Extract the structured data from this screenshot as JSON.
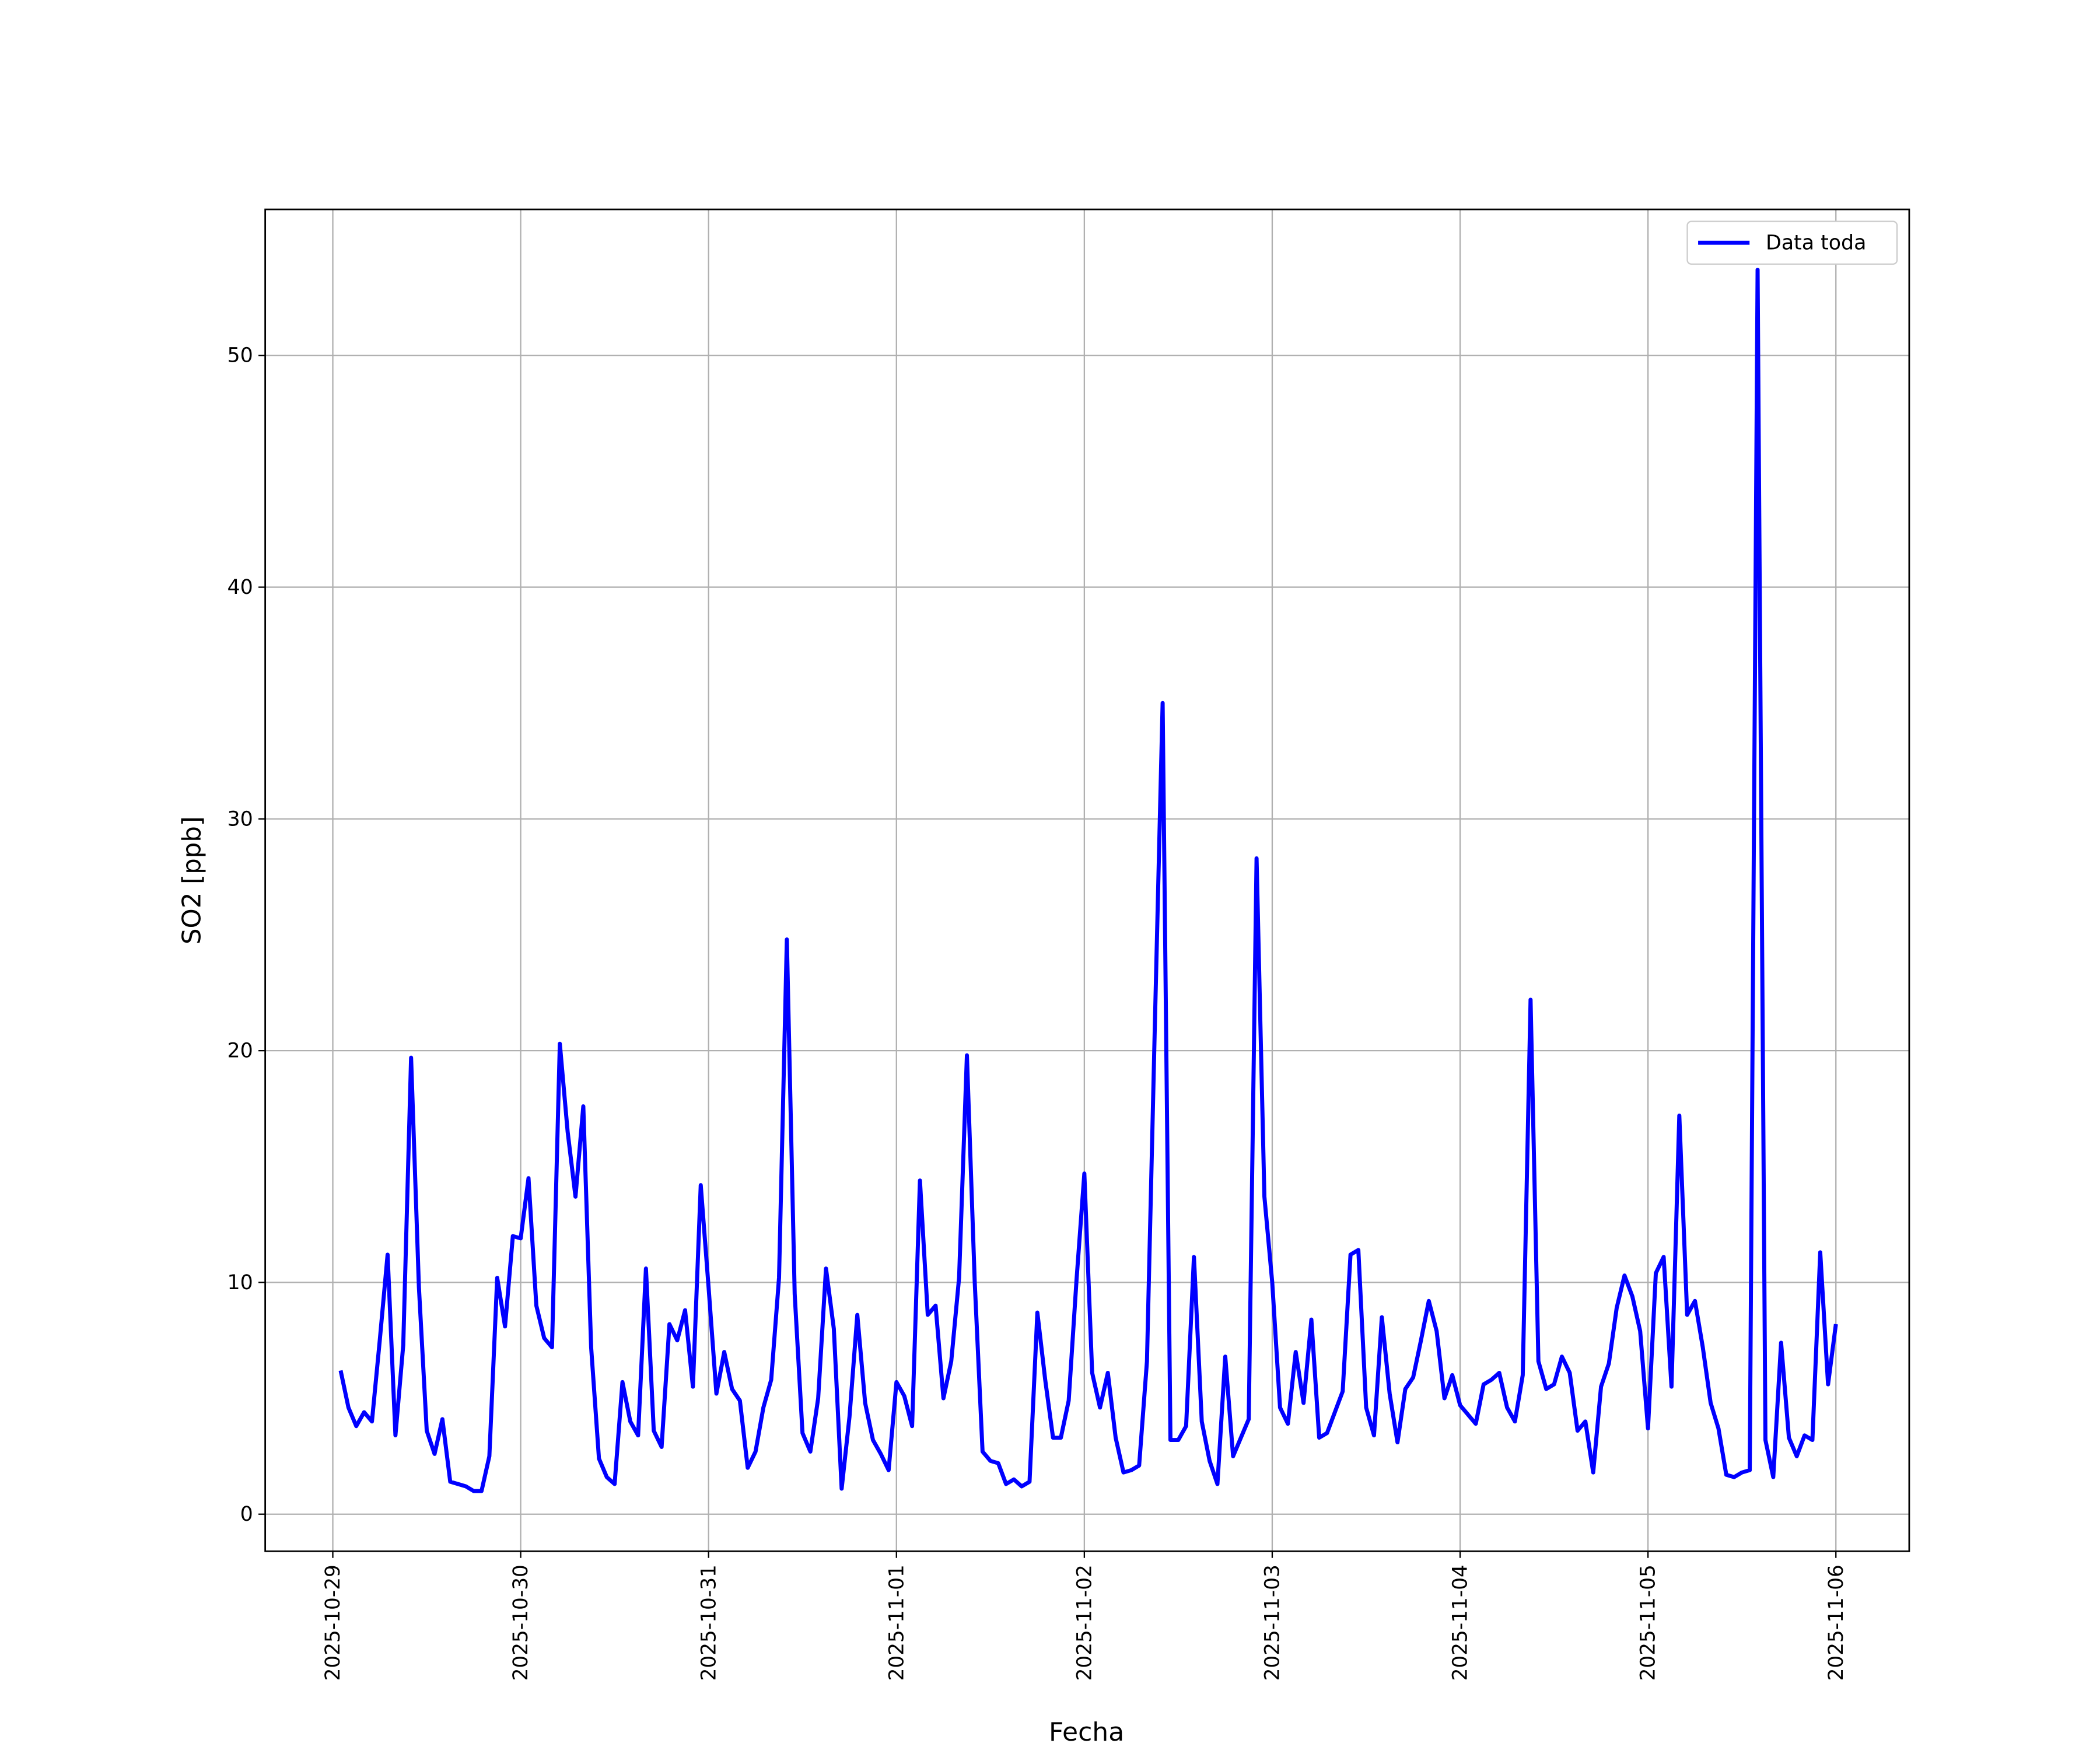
{
  "chart_data": {
    "type": "line",
    "xlabel": "Fecha",
    "ylabel": "SO2 [ppb]",
    "x": [
      "2025-10-29 01:00",
      "2025-10-29 02:00",
      "2025-10-29 03:00",
      "2025-10-29 04:00",
      "2025-10-29 05:00",
      "2025-10-29 06:00",
      "2025-10-29 07:00",
      "2025-10-29 08:00",
      "2025-10-29 09:00",
      "2025-10-29 10:00",
      "2025-10-29 11:00",
      "2025-10-29 12:00",
      "2025-10-29 13:00",
      "2025-10-29 14:00",
      "2025-10-29 15:00",
      "2025-10-29 16:00",
      "2025-10-29 17:00",
      "2025-10-29 18:00",
      "2025-10-29 19:00",
      "2025-10-29 20:00",
      "2025-10-29 21:00",
      "2025-10-29 22:00",
      "2025-10-29 23:00",
      "2025-10-30 00:00",
      "2025-10-30 01:00",
      "2025-10-30 02:00",
      "2025-10-30 03:00",
      "2025-10-30 04:00",
      "2025-10-30 05:00",
      "2025-10-30 06:00",
      "2025-10-30 07:00",
      "2025-10-30 08:00",
      "2025-10-30 09:00",
      "2025-10-30 10:00",
      "2025-10-30 11:00",
      "2025-10-30 12:00",
      "2025-10-30 13:00",
      "2025-10-30 14:00",
      "2025-10-30 15:00",
      "2025-10-30 16:00",
      "2025-10-30 17:00",
      "2025-10-30 18:00",
      "2025-10-30 19:00",
      "2025-10-30 20:00",
      "2025-10-30 21:00",
      "2025-10-30 22:00",
      "2025-10-30 23:00",
      "2025-10-31 00:00",
      "2025-10-31 01:00",
      "2025-10-31 02:00",
      "2025-10-31 03:00",
      "2025-10-31 04:00",
      "2025-10-31 05:00",
      "2025-10-31 06:00",
      "2025-10-31 07:00",
      "2025-10-31 08:00",
      "2025-10-31 09:00",
      "2025-10-31 10:00",
      "2025-10-31 11:00",
      "2025-10-31 12:00",
      "2025-10-31 13:00",
      "2025-10-31 14:00",
      "2025-10-31 15:00",
      "2025-10-31 16:00",
      "2025-10-31 17:00",
      "2025-10-31 18:00",
      "2025-10-31 19:00",
      "2025-10-31 20:00",
      "2025-10-31 21:00",
      "2025-10-31 22:00",
      "2025-10-31 23:00",
      "2025-11-01 00:00",
      "2025-11-01 01:00",
      "2025-11-01 02:00",
      "2025-11-01 03:00",
      "2025-11-01 04:00",
      "2025-11-01 05:00",
      "2025-11-01 06:00",
      "2025-11-01 07:00",
      "2025-11-01 08:00",
      "2025-11-01 09:00",
      "2025-11-01 10:00",
      "2025-11-01 11:00",
      "2025-11-01 12:00",
      "2025-11-01 13:00",
      "2025-11-01 14:00",
      "2025-11-01 15:00",
      "2025-11-01 16:00",
      "2025-11-01 17:00",
      "2025-11-01 18:00",
      "2025-11-01 19:00",
      "2025-11-01 20:00",
      "2025-11-01 21:00",
      "2025-11-01 22:00",
      "2025-11-01 23:00",
      "2025-11-02 00:00",
      "2025-11-02 01:00",
      "2025-11-02 02:00",
      "2025-11-02 03:00",
      "2025-11-02 04:00",
      "2025-11-02 05:00",
      "2025-11-02 06:00",
      "2025-11-02 07:00",
      "2025-11-02 08:00",
      "2025-11-02 09:00",
      "2025-11-02 10:00",
      "2025-11-02 11:00",
      "2025-11-02 12:00",
      "2025-11-02 13:00",
      "2025-11-02 14:00",
      "2025-11-02 15:00",
      "2025-11-02 16:00",
      "2025-11-02 17:00",
      "2025-11-02 18:00",
      "2025-11-02 19:00",
      "2025-11-02 20:00",
      "2025-11-02 21:00",
      "2025-11-02 22:00",
      "2025-11-02 23:00",
      "2025-11-03 00:00",
      "2025-11-03 01:00",
      "2025-11-03 02:00",
      "2025-11-03 03:00",
      "2025-11-03 04:00",
      "2025-11-03 05:00",
      "2025-11-03 06:00",
      "2025-11-03 07:00",
      "2025-11-03 08:00",
      "2025-11-03 09:00",
      "2025-11-03 10:00",
      "2025-11-03 11:00",
      "2025-11-03 12:00",
      "2025-11-03 13:00",
      "2025-11-03 14:00",
      "2025-11-03 15:00",
      "2025-11-03 16:00",
      "2025-11-03 17:00",
      "2025-11-03 18:00",
      "2025-11-03 19:00",
      "2025-11-03 20:00",
      "2025-11-03 21:00",
      "2025-11-03 22:00",
      "2025-11-03 23:00",
      "2025-11-04 00:00",
      "2025-11-04 01:00",
      "2025-11-04 02:00",
      "2025-11-04 03:00",
      "2025-11-04 04:00",
      "2025-11-04 05:00",
      "2025-11-04 06:00",
      "2025-11-04 07:00",
      "2025-11-04 08:00",
      "2025-11-04 09:00",
      "2025-11-04 10:00",
      "2025-11-04 11:00",
      "2025-11-04 12:00",
      "2025-11-04 13:00",
      "2025-11-04 14:00",
      "2025-11-04 15:00",
      "2025-11-04 16:00",
      "2025-11-04 17:00",
      "2025-11-04 18:00",
      "2025-11-04 19:00",
      "2025-11-04 20:00",
      "2025-11-04 21:00",
      "2025-11-04 22:00",
      "2025-11-04 23:00",
      "2025-11-05 00:00",
      "2025-11-05 01:00",
      "2025-11-05 02:00",
      "2025-11-05 03:00",
      "2025-11-05 04:00",
      "2025-11-05 05:00",
      "2025-11-05 06:00",
      "2025-11-05 07:00",
      "2025-11-05 08:00",
      "2025-11-05 09:00",
      "2025-11-05 10:00",
      "2025-11-05 11:00",
      "2025-11-05 12:00",
      "2025-11-05 13:00",
      "2025-11-05 14:00",
      "2025-11-05 15:00",
      "2025-11-05 16:00",
      "2025-11-05 17:00",
      "2025-11-05 18:00",
      "2025-11-05 19:00",
      "2025-11-05 20:00",
      "2025-11-05 21:00",
      "2025-11-05 22:00",
      "2025-11-05 23:00",
      "2025-11-06 00:00"
    ],
    "series": [
      {
        "name": "Data toda",
        "color": "#0000ff",
        "values": [
          6.2,
          4.6,
          3.8,
          4.4,
          4.0,
          7.5,
          11.2,
          3.4,
          7.3,
          19.7,
          9.8,
          3.6,
          2.6,
          4.1,
          1.4,
          1.3,
          1.2,
          1.0,
          1.0,
          2.5,
          10.2,
          8.1,
          12.0,
          11.9,
          14.5,
          9.0,
          7.6,
          7.2,
          20.3,
          16.5,
          13.7,
          17.6,
          7.2,
          2.4,
          1.6,
          1.3,
          5.7,
          4.0,
          3.4,
          10.6,
          3.6,
          2.9,
          8.2,
          7.5,
          8.8,
          5.5,
          14.2,
          9.8,
          5.2,
          7.0,
          5.4,
          4.9,
          2.0,
          2.7,
          4.6,
          5.8,
          10.2,
          24.8,
          9.5,
          3.5,
          2.7,
          5.0,
          10.6,
          8.0,
          1.1,
          4.2,
          8.6,
          4.8,
          3.2,
          2.6,
          1.9,
          5.7,
          5.1,
          3.8,
          14.4,
          8.6,
          9.0,
          5.0,
          6.6,
          10.2,
          19.8,
          10.0,
          2.7,
          2.3,
          2.2,
          1.3,
          1.5,
          1.2,
          1.4,
          8.7,
          5.8,
          3.3,
          3.3,
          4.9,
          10.1,
          14.7,
          6.1,
          4.6,
          6.1,
          3.3,
          1.8,
          1.9,
          2.1,
          6.6,
          21.0,
          35.0,
          3.2,
          3.2,
          3.8,
          11.1,
          4.0,
          2.3,
          1.3,
          6.8,
          2.5,
          3.3,
          4.1,
          28.3,
          13.7,
          10.0,
          4.6,
          3.9,
          7.0,
          4.8,
          8.4,
          3.3,
          3.5,
          4.4,
          5.3,
          11.2,
          11.4,
          4.6,
          3.4,
          8.5,
          5.2,
          3.1,
          5.4,
          5.9,
          7.5,
          9.2,
          7.9,
          5.0,
          6.0,
          4.7,
          4.3,
          3.9,
          5.6,
          5.8,
          6.1,
          4.6,
          4.0,
          6.0,
          22.2,
          6.6,
          5.4,
          5.6,
          6.8,
          6.1,
          3.6,
          4.0,
          1.8,
          5.5,
          6.5,
          8.9,
          10.3,
          9.4,
          7.9,
          3.7,
          10.4,
          11.1,
          5.5,
          17.2,
          8.6,
          9.2,
          7.2,
          4.8,
          3.7,
          1.7,
          1.6,
          1.8,
          1.9,
          53.7,
          3.2,
          1.6,
          7.4,
          3.3,
          2.5,
          3.4,
          3.2,
          11.3,
          5.6,
          8.2
        ]
      }
    ],
    "xlim": [
      "2025-10-28 15:22",
      "2025-11-06 09:22"
    ],
    "xticks": [
      "2025-10-29",
      "2025-10-30",
      "2025-10-31",
      "2025-11-01",
      "2025-11-02",
      "2025-11-03",
      "2025-11-04",
      "2025-11-05",
      "2025-11-06"
    ],
    "ylim": [
      -1.6,
      56.3
    ],
    "yticks": [
      0,
      10,
      20,
      30,
      40,
      50
    ],
    "grid": true,
    "legend": "upper right"
  }
}
